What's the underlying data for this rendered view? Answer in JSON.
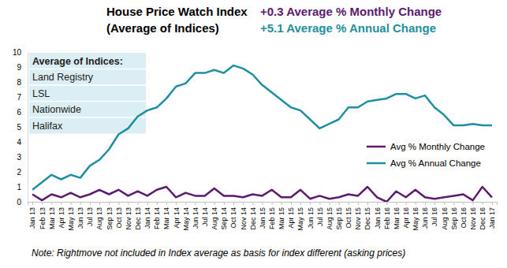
{
  "chart_data": {
    "type": "line",
    "title": "House Price Watch Index",
    "subtitle": "(Average of Indices)",
    "annotations": [
      {
        "text": "+0.3 Average % Monthly Change",
        "color": "#5c1a6e"
      },
      {
        "text": "+5.1 Average % Annual Change",
        "color": "#1f8fa0"
      }
    ],
    "index_box": {
      "title": "Average of Indices:",
      "items": [
        "Land Registry",
        "LSL",
        "Nationwide",
        "Halifax"
      ]
    },
    "note": "Note: Rightmove not included in Index average as basis for index different (asking prices)",
    "categories": [
      "Jan 13",
      "Feb 13",
      "Mar 13",
      "Apr 13",
      "May 13",
      "Jun 13",
      "Jul 13",
      "Aug 13",
      "Sep 13",
      "Oct 13",
      "Nov 13",
      "Dec 13",
      "Jan 14",
      "Feb 14",
      "Mar 14",
      "Apr 14",
      "May 14",
      "Jun 14",
      "Jul 14",
      "Aug 14",
      "Sep 14",
      "Oct 14",
      "Nov 14",
      "Dec 14",
      "Jan 15",
      "Feb 15",
      "Mar 15",
      "Apr 15",
      "May 15",
      "Jun 15",
      "Jul 15",
      "Aug 15",
      "Sep 15",
      "Oct 15",
      "Nov 15",
      "Dec 15",
      "Jan 16",
      "Feb 16",
      "Mar 16",
      "Apr 16",
      "May 16",
      "Jun 16",
      "Jul 16",
      "Aug 16",
      "Sep 16",
      "Oct 16",
      "Nov 16",
      "Dec 16",
      "Jan 17"
    ],
    "series": [
      {
        "name": "Avg % Monthly Change",
        "color": "#5c1a6e",
        "values": [
          0.5,
          0.1,
          0.5,
          0.3,
          0.6,
          0.3,
          0.5,
          0.8,
          0.5,
          0.8,
          0.4,
          0.7,
          0.4,
          0.8,
          1.0,
          0.3,
          0.6,
          0.4,
          0.4,
          0.9,
          0.4,
          0.4,
          0.3,
          0.5,
          0.4,
          0.8,
          0.3,
          0.3,
          0.8,
          0.2,
          0.4,
          0.2,
          0.3,
          0.5,
          0.4,
          1.0,
          0.3,
          0.0,
          0.7,
          0.3,
          0.8,
          0.3,
          0.2,
          0.3,
          0.4,
          0.5,
          0.1,
          1.0,
          0.3
        ]
      },
      {
        "name": "Avg % Annual Change",
        "color": "#1f8fa0",
        "values": [
          0.8,
          1.3,
          1.8,
          1.5,
          1.8,
          1.6,
          2.4,
          2.8,
          3.5,
          4.5,
          4.9,
          5.7,
          6.1,
          6.3,
          6.9,
          7.7,
          7.9,
          8.6,
          8.6,
          8.8,
          8.6,
          9.1,
          8.9,
          8.5,
          7.8,
          7.3,
          6.8,
          6.3,
          6.1,
          5.5,
          4.9,
          5.2,
          5.5,
          6.3,
          6.3,
          6.7,
          6.8,
          6.9,
          7.2,
          7.2,
          6.9,
          7.1,
          6.3,
          5.8,
          5.1,
          5.1,
          5.2,
          5.1,
          5.1
        ]
      }
    ],
    "ylim": [
      0,
      10
    ],
    "yticks": [
      0,
      1,
      2,
      3,
      4,
      5,
      6,
      7,
      8,
      9,
      10
    ],
    "grid": false,
    "legend": "lower right"
  }
}
